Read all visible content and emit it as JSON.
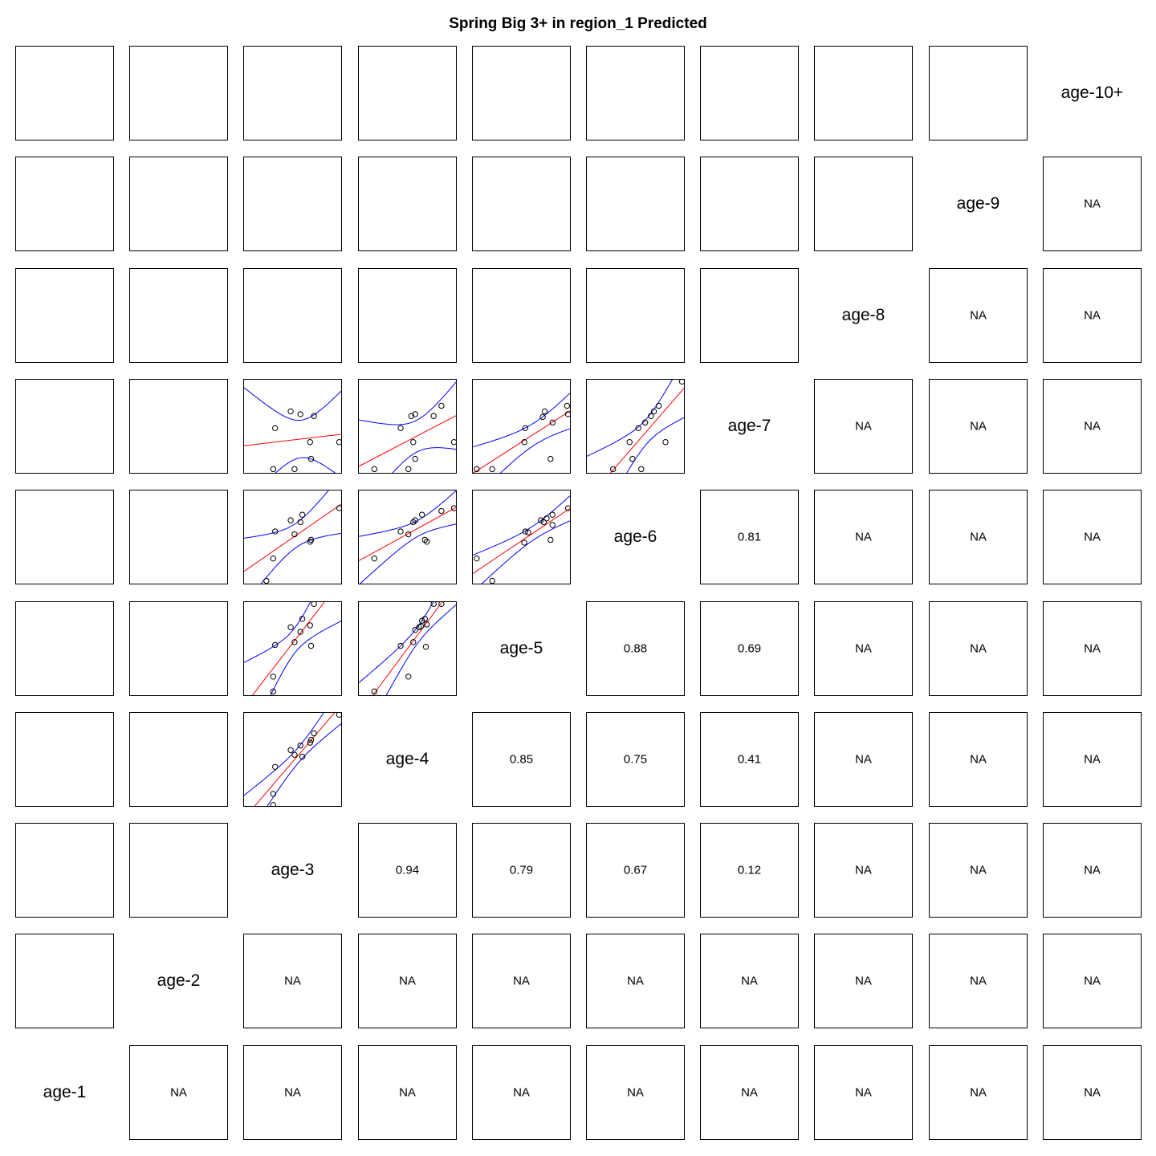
{
  "chart_data": {
    "type": "scatter",
    "title": "Spring Big 3+ in region_1 Predicted",
    "variables": [
      "age-1",
      "age-2",
      "age-3",
      "age-4",
      "age-5",
      "age-6",
      "age-7",
      "age-8",
      "age-9",
      "age-10+"
    ],
    "colors": {
      "points": "#000000",
      "fit_line": "#ff0000",
      "confidence_band": "#0000ff"
    },
    "correlations": [
      {
        "row": "age-1",
        "col": "age-2",
        "label": "NA"
      },
      {
        "row": "age-1",
        "col": "age-3",
        "label": "NA"
      },
      {
        "row": "age-1",
        "col": "age-4",
        "label": "NA"
      },
      {
        "row": "age-1",
        "col": "age-5",
        "label": "NA"
      },
      {
        "row": "age-1",
        "col": "age-6",
        "label": "NA"
      },
      {
        "row": "age-1",
        "col": "age-7",
        "label": "NA"
      },
      {
        "row": "age-1",
        "col": "age-8",
        "label": "NA"
      },
      {
        "row": "age-1",
        "col": "age-9",
        "label": "NA"
      },
      {
        "row": "age-1",
        "col": "age-10+",
        "label": "NA"
      },
      {
        "row": "age-2",
        "col": "age-3",
        "label": "NA"
      },
      {
        "row": "age-2",
        "col": "age-4",
        "label": "NA"
      },
      {
        "row": "age-2",
        "col": "age-5",
        "label": "NA"
      },
      {
        "row": "age-2",
        "col": "age-6",
        "label": "NA"
      },
      {
        "row": "age-2",
        "col": "age-7",
        "label": "NA"
      },
      {
        "row": "age-2",
        "col": "age-8",
        "label": "NA"
      },
      {
        "row": "age-2",
        "col": "age-9",
        "label": "NA"
      },
      {
        "row": "age-2",
        "col": "age-10+",
        "label": "NA"
      },
      {
        "row": "age-3",
        "col": "age-4",
        "label": "0.94"
      },
      {
        "row": "age-3",
        "col": "age-5",
        "label": "0.79"
      },
      {
        "row": "age-3",
        "col": "age-6",
        "label": "0.67"
      },
      {
        "row": "age-3",
        "col": "age-7",
        "label": "0.12"
      },
      {
        "row": "age-3",
        "col": "age-8",
        "label": "NA"
      },
      {
        "row": "age-3",
        "col": "age-9",
        "label": "NA"
      },
      {
        "row": "age-3",
        "col": "age-10+",
        "label": "NA"
      },
      {
        "row": "age-4",
        "col": "age-5",
        "label": "0.85"
      },
      {
        "row": "age-4",
        "col": "age-6",
        "label": "0.75"
      },
      {
        "row": "age-4",
        "col": "age-7",
        "label": "0.41"
      },
      {
        "row": "age-4",
        "col": "age-8",
        "label": "NA"
      },
      {
        "row": "age-4",
        "col": "age-9",
        "label": "NA"
      },
      {
        "row": "age-4",
        "col": "age-10+",
        "label": "NA"
      },
      {
        "row": "age-5",
        "col": "age-6",
        "label": "0.88"
      },
      {
        "row": "age-5",
        "col": "age-7",
        "label": "0.69"
      },
      {
        "row": "age-5",
        "col": "age-8",
        "label": "NA"
      },
      {
        "row": "age-5",
        "col": "age-9",
        "label": "NA"
      },
      {
        "row": "age-5",
        "col": "age-10+",
        "label": "NA"
      },
      {
        "row": "age-6",
        "col": "age-7",
        "label": "0.81"
      },
      {
        "row": "age-6",
        "col": "age-8",
        "label": "NA"
      },
      {
        "row": "age-6",
        "col": "age-9",
        "label": "NA"
      },
      {
        "row": "age-6",
        "col": "age-10+",
        "label": "NA"
      },
      {
        "row": "age-7",
        "col": "age-8",
        "label": "NA"
      },
      {
        "row": "age-7",
        "col": "age-9",
        "label": "NA"
      },
      {
        "row": "age-7",
        "col": "age-10+",
        "label": "NA"
      },
      {
        "row": "age-8",
        "col": "age-9",
        "label": "NA"
      },
      {
        "row": "age-8",
        "col": "age-10+",
        "label": "NA"
      },
      {
        "row": "age-9",
        "col": "age-10+",
        "label": "NA"
      }
    ],
    "scatter_panels": [
      {
        "x": "age-3",
        "y": "age-4",
        "points": [
          [
            0.3,
            0.13
          ],
          [
            0.3,
            0.01
          ],
          [
            0.32,
            0.42
          ],
          [
            0.48,
            0.6
          ],
          [
            0.52,
            0.55
          ],
          [
            0.58,
            0.65
          ],
          [
            0.6,
            0.53
          ],
          [
            0.68,
            0.68
          ],
          [
            0.69,
            0.71
          ],
          [
            0.72,
            0.78
          ],
          [
            0.98,
            0.98
          ]
        ]
      },
      {
        "x": "age-3",
        "y": "age-5",
        "points": [
          [
            0.3,
            0.04
          ],
          [
            0.3,
            0.2
          ],
          [
            0.32,
            0.54
          ],
          [
            0.48,
            0.73
          ],
          [
            0.52,
            0.57
          ],
          [
            0.58,
            0.68
          ],
          [
            0.6,
            0.82
          ],
          [
            0.68,
            0.75
          ],
          [
            0.69,
            0.53
          ],
          [
            0.72,
            0.98
          ]
        ]
      },
      {
        "x": "age-4",
        "y": "age-5",
        "points": [
          [
            0.16,
            0.04
          ],
          [
            0.43,
            0.53
          ],
          [
            0.51,
            0.2
          ],
          [
            0.56,
            0.57
          ],
          [
            0.58,
            0.7
          ],
          [
            0.62,
            0.73
          ],
          [
            0.64,
            0.74
          ],
          [
            0.65,
            0.8
          ],
          [
            0.68,
            0.82
          ],
          [
            0.7,
            0.76
          ],
          [
            0.69,
            0.52
          ],
          [
            0.77,
            0.98
          ],
          [
            0.85,
            0.98
          ]
        ]
      },
      {
        "x": "age-3",
        "y": "age-6",
        "points": [
          [
            0.23,
            0.03
          ],
          [
            0.3,
            0.27
          ],
          [
            0.32,
            0.56
          ],
          [
            0.48,
            0.68
          ],
          [
            0.52,
            0.53
          ],
          [
            0.58,
            0.66
          ],
          [
            0.6,
            0.74
          ],
          [
            0.68,
            0.45
          ],
          [
            0.69,
            0.47
          ],
          [
            0.98,
            0.81
          ]
        ]
      },
      {
        "x": "age-4",
        "y": "age-6",
        "points": [
          [
            0.16,
            0.27
          ],
          [
            0.43,
            0.56
          ],
          [
            0.51,
            0.53
          ],
          [
            0.56,
            0.66
          ],
          [
            0.58,
            0.68
          ],
          [
            0.65,
            0.74
          ],
          [
            0.68,
            0.47
          ],
          [
            0.7,
            0.45
          ],
          [
            0.85,
            0.78
          ],
          [
            0.98,
            0.81
          ]
        ]
      },
      {
        "x": "age-5",
        "y": "age-6",
        "points": [
          [
            0.04,
            0.27
          ],
          [
            0.2,
            0.03
          ],
          [
            0.53,
            0.44
          ],
          [
            0.54,
            0.56
          ],
          [
            0.57,
            0.55
          ],
          [
            0.7,
            0.68
          ],
          [
            0.73,
            0.66
          ],
          [
            0.76,
            0.7
          ],
          [
            0.8,
            0.47
          ],
          [
            0.82,
            0.74
          ],
          [
            0.82,
            0.63
          ],
          [
            0.98,
            0.81
          ]
        ]
      },
      {
        "x": "age-3",
        "y": "age-7",
        "points": [
          [
            0.3,
            0.04
          ],
          [
            0.32,
            0.48
          ],
          [
            0.48,
            0.66
          ],
          [
            0.52,
            0.04
          ],
          [
            0.58,
            0.63
          ],
          [
            0.68,
            0.33
          ],
          [
            0.69,
            0.15
          ],
          [
            0.72,
            0.61
          ],
          [
            0.98,
            0.33
          ]
        ]
      },
      {
        "x": "age-4",
        "y": "age-7",
        "points": [
          [
            0.16,
            0.04
          ],
          [
            0.43,
            0.48
          ],
          [
            0.51,
            0.04
          ],
          [
            0.56,
            0.33
          ],
          [
            0.58,
            0.15
          ],
          [
            0.54,
            0.61
          ],
          [
            0.58,
            0.63
          ],
          [
            0.77,
            0.61
          ],
          [
            0.85,
            0.72
          ],
          [
            0.98,
            0.33
          ]
        ]
      },
      {
        "x": "age-5",
        "y": "age-7",
        "points": [
          [
            0.04,
            0.04
          ],
          [
            0.2,
            0.04
          ],
          [
            0.53,
            0.33
          ],
          [
            0.54,
            0.48
          ],
          [
            0.72,
            0.6
          ],
          [
            0.74,
            0.66
          ],
          [
            0.8,
            0.15
          ],
          [
            0.82,
            0.54
          ],
          [
            0.98,
            0.63
          ],
          [
            0.97,
            0.72
          ]
        ]
      },
      {
        "x": "age-6",
        "y": "age-7",
        "points": [
          [
            0.27,
            0.04
          ],
          [
            0.44,
            0.33
          ],
          [
            0.47,
            0.15
          ],
          [
            0.53,
            0.48
          ],
          [
            0.56,
            0.04
          ],
          [
            0.6,
            0.54
          ],
          [
            0.66,
            0.61
          ],
          [
            0.69,
            0.66
          ],
          [
            0.74,
            0.72
          ],
          [
            0.81,
            0.33
          ],
          [
            0.98,
            0.98
          ]
        ]
      }
    ]
  }
}
